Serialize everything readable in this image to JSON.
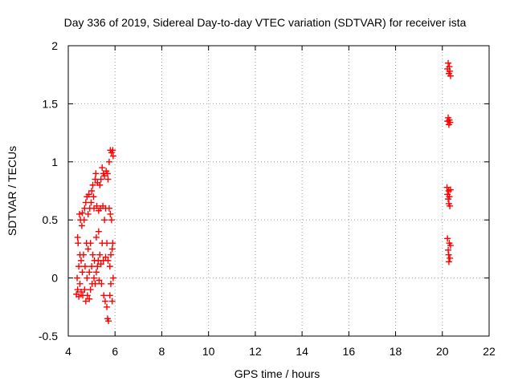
{
  "chart_data": {
    "type": "scatter",
    "title": "Day 336 of 2019, Sidereal Day-to-day VTEC variation (SDTVAR) for receiver ista",
    "xlabel": "GPS time / hours",
    "ylabel": "SDTVAR / TECUs",
    "xlim": [
      4,
      22
    ],
    "ylim": [
      -0.5,
      2
    ],
    "xticks": [
      4,
      6,
      8,
      10,
      12,
      14,
      16,
      18,
      20,
      22
    ],
    "yticks": [
      -0.5,
      0,
      0.5,
      1,
      1.5,
      2
    ],
    "ytick_labels": [
      "-0.5",
      "0",
      "0.5",
      "1",
      "1.5",
      "2"
    ],
    "grid": true,
    "marker": "+",
    "marker_color": "#ff0000",
    "series": [
      {
        "name": "SDTVAR",
        "points": [
          [
            4.35,
            -0.14
          ],
          [
            4.38,
            0.0
          ],
          [
            4.4,
            0.35
          ],
          [
            4.4,
            -0.1
          ],
          [
            4.42,
            0.3
          ],
          [
            4.45,
            -0.16
          ],
          [
            4.45,
            0.1
          ],
          [
            4.48,
            0.55
          ],
          [
            4.5,
            -0.05
          ],
          [
            4.5,
            0.2
          ],
          [
            4.52,
            0.5
          ],
          [
            4.55,
            0.15
          ],
          [
            4.55,
            -0.12
          ],
          [
            4.58,
            0.45
          ],
          [
            4.6,
            0.56
          ],
          [
            4.6,
            0.05
          ],
          [
            4.62,
            -0.15
          ],
          [
            4.65,
            0.2
          ],
          [
            4.68,
            0.5
          ],
          [
            4.7,
            0.6
          ],
          [
            4.7,
            -0.1
          ],
          [
            4.72,
            0.1
          ],
          [
            4.75,
            0.65
          ],
          [
            4.75,
            -0.2
          ],
          [
            4.78,
            0.3
          ],
          [
            4.8,
            0.7
          ],
          [
            4.8,
            0.0
          ],
          [
            4.82,
            -0.15
          ],
          [
            4.85,
            0.55
          ],
          [
            4.85,
            0.25
          ],
          [
            4.88,
            0.72
          ],
          [
            4.9,
            -0.18
          ],
          [
            4.9,
            0.05
          ],
          [
            4.92,
            0.6
          ],
          [
            4.95,
            0.3
          ],
          [
            4.95,
            -0.1
          ],
          [
            4.98,
            0.65
          ],
          [
            5.0,
            0.75
          ],
          [
            5.0,
            0.1
          ],
          [
            5.02,
            -0.05
          ],
          [
            5.05,
            0.8
          ],
          [
            5.05,
            0.2
          ],
          [
            5.08,
            0.7
          ],
          [
            5.1,
            0.0
          ],
          [
            5.1,
            0.6
          ],
          [
            5.12,
            0.15
          ],
          [
            5.15,
            0.85
          ],
          [
            5.15,
            -0.05
          ],
          [
            5.18,
            0.9
          ],
          [
            5.2,
            0.35
          ],
          [
            5.2,
            0.05
          ],
          [
            5.22,
            0.62
          ],
          [
            5.25,
            0.82
          ],
          [
            5.25,
            0.1
          ],
          [
            5.28,
            0.15
          ],
          [
            5.3,
            0.58
          ],
          [
            5.3,
            0.4
          ],
          [
            5.32,
            -0.02
          ],
          [
            5.35,
            0.8
          ],
          [
            5.35,
            0.2
          ],
          [
            5.38,
            0.6
          ],
          [
            5.4,
            0.85
          ],
          [
            5.4,
            0.12
          ],
          [
            5.42,
            -0.05
          ],
          [
            5.45,
            0.95
          ],
          [
            5.45,
            0.3
          ],
          [
            5.48,
            0.62
          ],
          [
            5.5,
            0.9
          ],
          [
            5.5,
            0.15
          ],
          [
            5.52,
            -0.15
          ],
          [
            5.55,
            0.88
          ],
          [
            5.55,
            0.5
          ],
          [
            5.58,
            -0.2
          ],
          [
            5.6,
            0.6
          ],
          [
            5.6,
            0.18
          ],
          [
            5.62,
            0.92
          ],
          [
            5.65,
            -0.25
          ],
          [
            5.65,
            0.3
          ],
          [
            5.68,
            0.9
          ],
          [
            5.68,
            -0.35
          ],
          [
            5.7,
            0.15
          ],
          [
            5.7,
            0.85
          ],
          [
            5.72,
            -0.37
          ],
          [
            5.75,
            1.0
          ],
          [
            5.75,
            0.6
          ],
          [
            5.78,
            0.1
          ],
          [
            5.78,
            -0.15
          ],
          [
            5.8,
            1.1
          ],
          [
            5.8,
            0.55
          ],
          [
            5.82,
            0.2
          ],
          [
            5.82,
            -0.05
          ],
          [
            5.85,
            1.08
          ],
          [
            5.85,
            0.5
          ],
          [
            5.88,
            0.25
          ],
          [
            5.88,
            -0.2
          ],
          [
            5.9,
            1.1
          ],
          [
            5.9,
            0.3
          ],
          [
            5.92,
            1.05
          ],
          [
            5.92,
            0.0
          ],
          [
            20.22,
            1.8
          ],
          [
            20.25,
            1.85
          ],
          [
            20.28,
            1.76
          ],
          [
            20.3,
            1.82
          ],
          [
            20.32,
            1.78
          ],
          [
            20.35,
            1.74
          ],
          [
            20.22,
            1.35
          ],
          [
            20.25,
            1.38
          ],
          [
            20.28,
            1.32
          ],
          [
            20.3,
            1.36
          ],
          [
            20.33,
            1.34
          ],
          [
            20.2,
            0.78
          ],
          [
            20.22,
            0.72
          ],
          [
            20.25,
            0.68
          ],
          [
            20.27,
            0.75
          ],
          [
            20.28,
            0.64
          ],
          [
            20.3,
            0.7
          ],
          [
            20.32,
            0.62
          ],
          [
            20.35,
            0.76
          ],
          [
            20.22,
            0.34
          ],
          [
            20.25,
            0.24
          ],
          [
            20.27,
            0.2
          ],
          [
            20.28,
            0.14
          ],
          [
            20.3,
            0.3
          ],
          [
            20.32,
            0.17
          ],
          [
            20.35,
            0.28
          ]
        ]
      }
    ]
  }
}
